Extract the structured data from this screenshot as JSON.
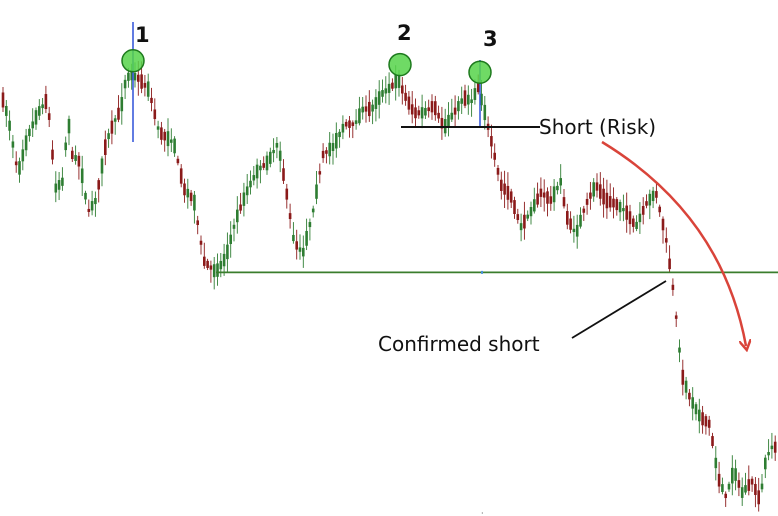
{
  "chart_data": {
    "type": "candlestick",
    "title": "",
    "xlabel": "",
    "ylabel": "",
    "grid": false,
    "legend": "none",
    "colors": {
      "up": "#2e7d32",
      "down": "#8b1a1a",
      "support": "#3a7d2c",
      "arrow": "#d9443a",
      "peak_marker": "#56d44a",
      "peak_line": "#3b5bdb"
    },
    "anchors": [
      [
        0,
        100
      ],
      [
        8,
        93
      ],
      [
        18,
        78
      ],
      [
        28,
        88
      ],
      [
        38,
        94
      ],
      [
        46,
        97
      ],
      [
        50,
        92
      ],
      [
        55,
        74
      ],
      [
        63,
        76
      ],
      [
        68,
        93
      ],
      [
        72,
        83
      ],
      [
        80,
        81
      ],
      [
        88,
        68
      ],
      [
        96,
        71
      ],
      [
        106,
        86
      ],
      [
        113,
        91
      ],
      [
        121,
        95
      ],
      [
        126,
        103
      ],
      [
        131,
        104
      ],
      [
        139,
        103
      ],
      [
        149,
        100
      ],
      [
        159,
        89
      ],
      [
        174,
        86
      ],
      [
        184,
        74
      ],
      [
        194,
        71
      ],
      [
        204,
        55
      ],
      [
        216,
        52
      ],
      [
        226,
        56
      ],
      [
        236,
        66
      ],
      [
        248,
        74
      ],
      [
        258,
        79
      ],
      [
        268,
        81
      ],
      [
        278,
        86
      ],
      [
        286,
        74
      ],
      [
        294,
        60
      ],
      [
        303,
        57
      ],
      [
        313,
        68
      ],
      [
        323,
        83
      ],
      [
        333,
        85
      ],
      [
        345,
        91
      ],
      [
        355,
        91
      ],
      [
        363,
        95
      ],
      [
        372,
        95
      ],
      [
        382,
        99
      ],
      [
        392,
        101
      ],
      [
        398,
        103
      ],
      [
        404,
        99
      ],
      [
        414,
        94
      ],
      [
        424,
        94
      ],
      [
        434,
        96
      ],
      [
        444,
        90
      ],
      [
        454,
        94
      ],
      [
        464,
        98
      ],
      [
        472,
        97
      ],
      [
        478,
        101
      ],
      [
        484,
        95
      ],
      [
        491,
        87
      ],
      [
        501,
        75
      ],
      [
        511,
        72
      ],
      [
        521,
        64
      ],
      [
        531,
        68
      ],
      [
        541,
        73
      ],
      [
        551,
        71
      ],
      [
        561,
        76
      ],
      [
        566,
        67
      ],
      [
        576,
        62
      ],
      [
        586,
        70
      ],
      [
        596,
        75
      ],
      [
        606,
        71
      ],
      [
        616,
        70
      ],
      [
        626,
        68
      ],
      [
        636,
        64
      ],
      [
        646,
        70
      ],
      [
        656,
        73
      ],
      [
        666,
        61
      ],
      [
        674,
        46
      ],
      [
        682,
        25
      ],
      [
        690,
        19
      ],
      [
        700,
        14
      ],
      [
        710,
        12
      ],
      [
        718,
        -2
      ],
      [
        726,
        -7
      ],
      [
        734,
        0
      ],
      [
        742,
        -6
      ],
      [
        752,
        -3
      ],
      [
        760,
        -8
      ],
      [
        766,
        3
      ],
      [
        772,
        6
      ],
      [
        778,
        6
      ]
    ],
    "support_level": 52
  },
  "annotations": {
    "peaks": [
      {
        "label": "1",
        "x": 133,
        "value": 104
      },
      {
        "label": "2",
        "x": 400,
        "value": 103
      },
      {
        "label": "3",
        "x": 480,
        "value": 101
      }
    ],
    "short_risk_label": "Short (Risk)",
    "confirmed_short_label": "Confirmed short"
  }
}
